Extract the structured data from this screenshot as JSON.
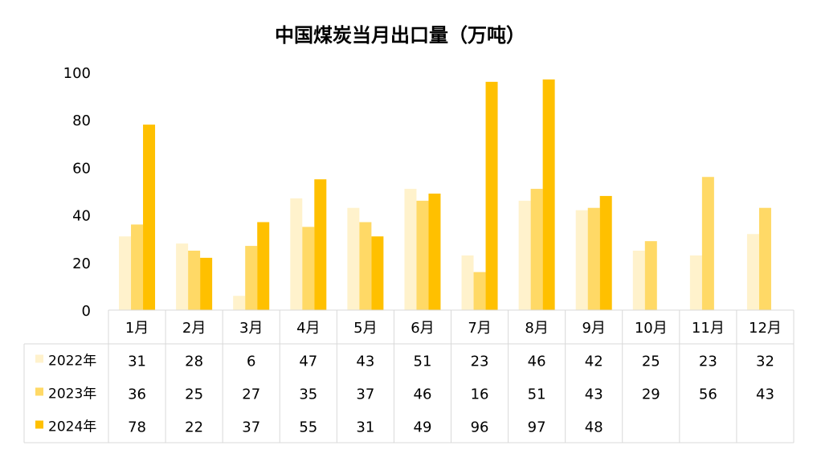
{
  "chart_data": {
    "type": "bar",
    "title": "中国煤炭当月出口量（万吨）",
    "categories": [
      "1月",
      "2月",
      "3月",
      "4月",
      "5月",
      "6月",
      "7月",
      "8月",
      "9月",
      "10月",
      "11月",
      "12月"
    ],
    "ylim": [
      0,
      100
    ],
    "yticks": [
      0,
      20,
      40,
      60,
      80,
      100
    ],
    "legend": "data-table",
    "series": [
      {
        "name": "2022年",
        "color": "#fff2cc",
        "values": [
          31,
          28,
          6,
          47,
          43,
          51,
          23,
          46,
          42,
          25,
          23,
          32
        ]
      },
      {
        "name": "2023年",
        "color": "#ffd966",
        "values": [
          36,
          25,
          27,
          35,
          37,
          46,
          16,
          51,
          43,
          29,
          56,
          43
        ]
      },
      {
        "name": "2024年",
        "color": "#ffc000",
        "values": [
          78,
          22,
          37,
          55,
          31,
          49,
          96,
          97,
          48,
          null,
          null,
          null
        ]
      }
    ]
  }
}
